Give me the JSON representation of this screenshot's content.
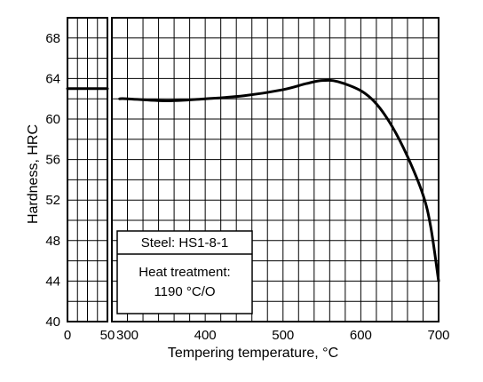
{
  "chart_data": {
    "type": "line",
    "title": "",
    "xlabel": "Tempering temperature, °C",
    "ylabel": "Hardness, HRC",
    "ylim": [
      40,
      70
    ],
    "y_ticks": [
      "40",
      "44",
      "48",
      "52",
      "56",
      "60",
      "64",
      "68"
    ],
    "x_break": {
      "left_segment": {
        "xlim": [
          0,
          50
        ],
        "tick_labels": [
          "0",
          "50"
        ]
      },
      "right_segment": {
        "xlim": [
          280,
          700
        ],
        "tick_labels": [
          "300",
          "400",
          "500",
          "600",
          "700"
        ]
      }
    },
    "grid": true,
    "series": [
      {
        "segment": "left",
        "x": [
          0,
          50
        ],
        "y": [
          63,
          63
        ]
      },
      {
        "segment": "right",
        "x": [
          290,
          300,
          350,
          400,
          450,
          500,
          530,
          550,
          570,
          600,
          620,
          640,
          660,
          680,
          690,
          700
        ],
        "y": [
          62.0,
          62.0,
          61.8,
          62.0,
          62.3,
          62.9,
          63.5,
          63.8,
          63.7,
          62.8,
          61.5,
          59.3,
          56.3,
          52.5,
          49.3,
          44.0
        ]
      }
    ],
    "annotation": {
      "steel_label": "Steel: HS1-8-1",
      "treatment_line1": "Heat treatment:",
      "treatment_line2": "1190 °C/O"
    }
  }
}
